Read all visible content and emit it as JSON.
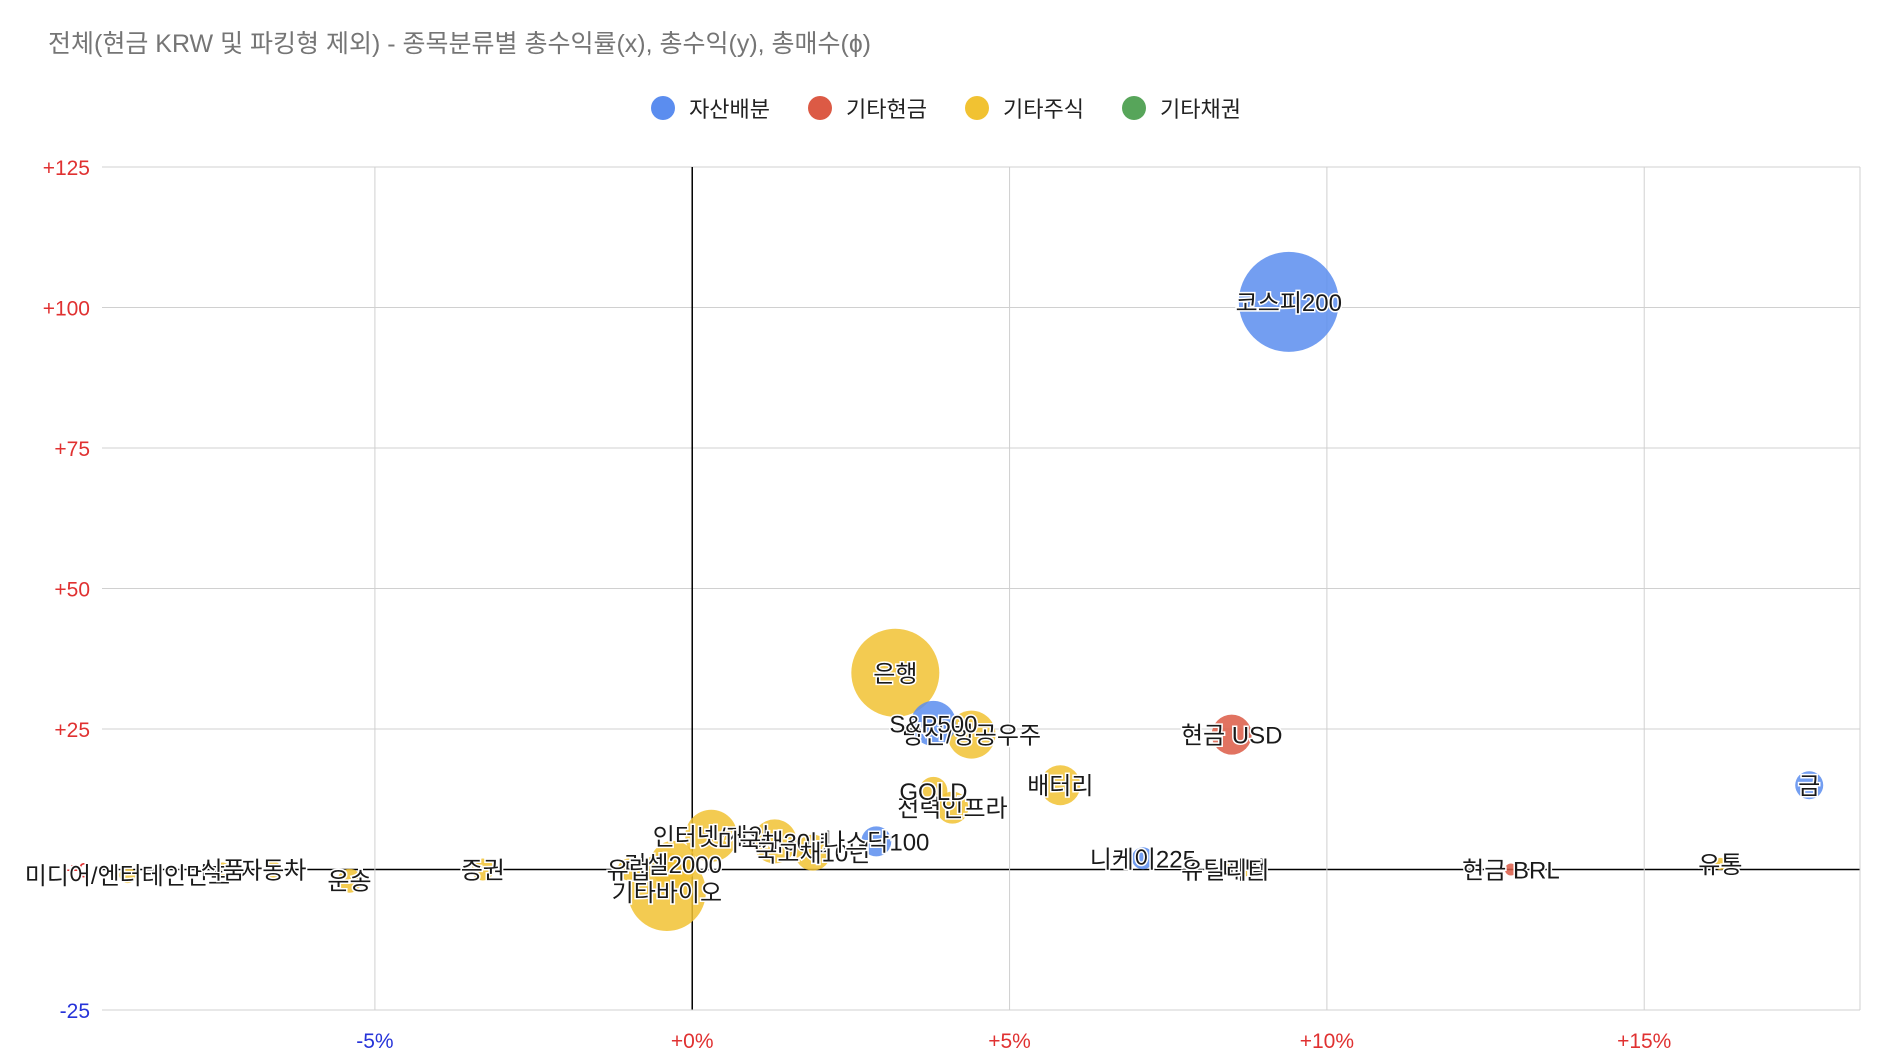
{
  "chart_data": {
    "type": "bubble",
    "title": "전체(현금 KRW 및 파킹형 제외) - 종목분류별 총수익률(x), 총수익(y), 총매수(ɸ)",
    "xlabel": "",
    "ylabel": "",
    "xlim": [
      -9.3,
      18.4
    ],
    "ylim": [
      -25,
      125
    ],
    "x_ticks": [
      {
        "value": -5,
        "label": "-5%"
      },
      {
        "value": 0,
        "label": "+0%"
      },
      {
        "value": 5,
        "label": "+5%"
      },
      {
        "value": 10,
        "label": "+10%"
      },
      {
        "value": 15,
        "label": "+15%"
      }
    ],
    "y_ticks": [
      {
        "value": -25,
        "label": "-25"
      },
      {
        "value": 0,
        "label": "+0"
      },
      {
        "value": 25,
        "label": "+25"
      },
      {
        "value": 50,
        "label": "+50"
      },
      {
        "value": 75,
        "label": "+75"
      },
      {
        "value": 100,
        "label": "+100"
      },
      {
        "value": 125,
        "label": "+125"
      }
    ],
    "grid": true,
    "legend_position": "top",
    "series": [
      {
        "name": "자산배분",
        "color": "#5b8def"
      },
      {
        "name": "기타현금",
        "color": "#dc5a45"
      },
      {
        "name": "기타주식",
        "color": "#f1c232"
      },
      {
        "name": "기타채권",
        "color": "#57a55a"
      }
    ],
    "points": [
      {
        "label": "코스피200",
        "series": "자산배분",
        "x": 9.4,
        "y": 101,
        "size": 100
      },
      {
        "label": "은행",
        "series": "기타주식",
        "x": 3.2,
        "y": 35,
        "size": 88
      },
      {
        "label": "S&P500",
        "series": "자산배분",
        "x": 3.8,
        "y": 26,
        "size": 45
      },
      {
        "label": "방산/항공우주",
        "series": "기타주식",
        "x": 4.4,
        "y": 24,
        "size": 48
      },
      {
        "label": "현금 USD",
        "series": "기타현금",
        "x": 8.5,
        "y": 24,
        "size": 40
      },
      {
        "label": "금",
        "series": "자산배분",
        "x": 17.6,
        "y": 15,
        "size": 28
      },
      {
        "label": "배터리",
        "series": "기타주식",
        "x": 5.8,
        "y": 15,
        "size": 40
      },
      {
        "label": "GOLD",
        "series": "기타주식",
        "x": 3.8,
        "y": 14,
        "size": 28
      },
      {
        "label": "전력인프라",
        "series": "기타주식",
        "x": 4.1,
        "y": 11,
        "size": 32
      },
      {
        "label": "인터넷/게임",
        "series": "기타주식",
        "x": 0.3,
        "y": 6,
        "size": 52
      },
      {
        "label": "미국채30년",
        "series": "기타주식",
        "x": 1.3,
        "y": 5,
        "size": 44
      },
      {
        "label": "나스닥100",
        "series": "자산배분",
        "x": 2.9,
        "y": 5,
        "size": 30
      },
      {
        "label": "국고채10년",
        "series": "기타주식",
        "x": 1.9,
        "y": 3,
        "size": 36
      },
      {
        "label": "니케이225",
        "series": "자산배분",
        "x": 7.1,
        "y": 2,
        "size": 22
      },
      {
        "label": "유럽",
        "series": "기타주식",
        "x": -1.0,
        "y": 0,
        "size": 22
      },
      {
        "label": "러셀2000",
        "series": "기타주식",
        "x": -0.3,
        "y": 1,
        "size": 46
      },
      {
        "label": "기타바이오",
        "series": "기타주식",
        "x": -0.4,
        "y": -4,
        "size": 78
      },
      {
        "label": "증권",
        "series": "기타주식",
        "x": -3.3,
        "y": 0,
        "size": 22
      },
      {
        "label": "운송",
        "series": "기타주식",
        "x": -5.4,
        "y": -2,
        "size": 24
      },
      {
        "label": "자동차",
        "series": "기타주식",
        "x": -6.6,
        "y": 0,
        "size": 16
      },
      {
        "label": "식품",
        "series": "기타주식",
        "x": -7.4,
        "y": 0,
        "size": 14
      },
      {
        "label": "미디어/엔터테인먼트",
        "series": "기타주식",
        "x": -8.9,
        "y": -1,
        "size": 16
      },
      {
        "label": "메탈",
        "series": "기타주식",
        "x": 8.7,
        "y": 0,
        "size": 14
      },
      {
        "label": "유틸리티",
        "series": "기타주식",
        "x": 8.4,
        "y": 0,
        "size": 12
      },
      {
        "label": "현금 BRL",
        "series": "기타현금",
        "x": 12.9,
        "y": 0,
        "size": 12
      },
      {
        "label": "유통",
        "series": "기타주식",
        "x": 16.2,
        "y": 1,
        "size": 12
      }
    ]
  }
}
